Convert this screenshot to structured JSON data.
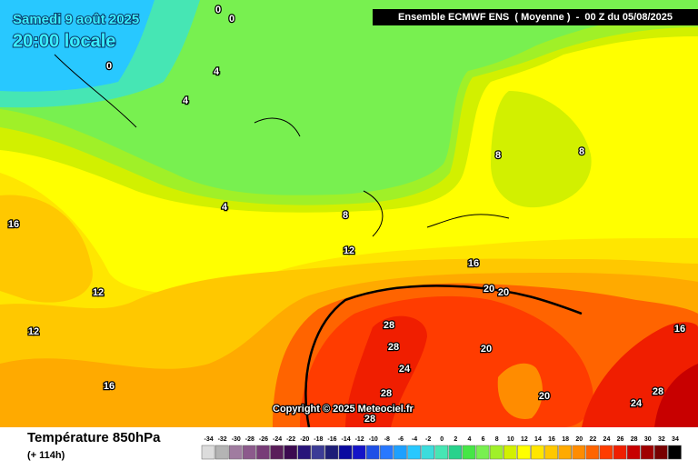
{
  "header": {
    "date": "Samedi 9 août 2025",
    "time": "20:00 locale",
    "model": "Ensemble ECMWF ENS  ( Moyenne )  -  00 Z du 05/08/2025"
  },
  "map": {
    "contour_labels": [
      "0",
      "0",
      "0",
      "4",
      "4",
      "4",
      "8",
      "12",
      "16",
      "20",
      "20",
      "16",
      "12",
      "12",
      "16",
      "28",
      "28",
      "24",
      "20",
      "28",
      "28",
      "20",
      "24",
      "28",
      "8",
      "8",
      "16"
    ],
    "copyright": "Copyright © 2025 Meteociel.fr"
  },
  "footer": {
    "title": "Température 850hPa",
    "lead": "(+ 114h)",
    "scale": [
      {
        "value": -34,
        "color": "#dcdcdc"
      },
      {
        "value": -32,
        "color": "#b4b4b4"
      },
      {
        "value": -30,
        "color": "#a07ca0"
      },
      {
        "value": -28,
        "color": "#8c5a8c"
      },
      {
        "value": -26,
        "color": "#783c78"
      },
      {
        "value": -24,
        "color": "#5a1e5a"
      },
      {
        "value": -22,
        "color": "#3c0a50"
      },
      {
        "value": -20,
        "color": "#28147a"
      },
      {
        "value": -18,
        "color": "#3c3c96"
      },
      {
        "value": -16,
        "color": "#1e1e78"
      },
      {
        "value": -14,
        "color": "#0a0aa0"
      },
      {
        "value": -12,
        "color": "#1414c8"
      },
      {
        "value": -10,
        "color": "#1e50e6"
      },
      {
        "value": -8,
        "color": "#2878ff"
      },
      {
        "value": -6,
        "color": "#1ea0ff"
      },
      {
        "value": -4,
        "color": "#28c8ff"
      },
      {
        "value": -2,
        "color": "#3cdcdc"
      },
      {
        "value": 0,
        "color": "#46e6b4"
      },
      {
        "value": 2,
        "color": "#28d28c"
      },
      {
        "value": 4,
        "color": "#46e646"
      },
      {
        "value": 6,
        "color": "#78f050"
      },
      {
        "value": 8,
        "color": "#a0f028"
      },
      {
        "value": 10,
        "color": "#d2f000"
      },
      {
        "value": 12,
        "color": "#ffff00"
      },
      {
        "value": 14,
        "color": "#ffe600"
      },
      {
        "value": 16,
        "color": "#ffc800"
      },
      {
        "value": 18,
        "color": "#ffaa00"
      },
      {
        "value": 20,
        "color": "#ff8c00"
      },
      {
        "value": 22,
        "color": "#ff6400"
      },
      {
        "value": 24,
        "color": "#ff3c00"
      },
      {
        "value": 26,
        "color": "#f01e00"
      },
      {
        "value": 28,
        "color": "#c80000"
      },
      {
        "value": 30,
        "color": "#a00000"
      },
      {
        "value": 32,
        "color": "#780000"
      },
      {
        "value": 34,
        "color": "#000000"
      }
    ]
  }
}
